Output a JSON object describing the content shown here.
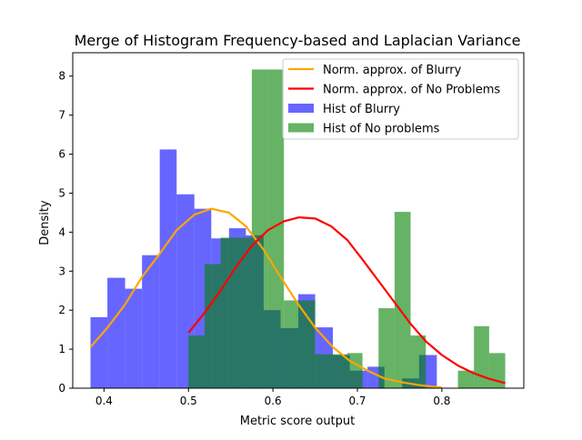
{
  "chart_data": {
    "type": "bar",
    "title": "Merge of Histogram Frequency-based and Laplacian Variance",
    "xlabel": "Metric score output",
    "ylabel": "Density",
    "xlim": [
      0.363,
      0.897
    ],
    "ylim": [
      0,
      8.6
    ],
    "xticks": [
      0.4,
      0.5,
      0.6,
      0.7,
      0.8
    ],
    "xtick_labels": [
      "0.4",
      "0.5",
      "0.6",
      "0.7",
      "0.8"
    ],
    "yticks": [
      0,
      1,
      2,
      3,
      4,
      5,
      6,
      7,
      8
    ],
    "ytick_labels": [
      "0",
      "1",
      "2",
      "3",
      "4",
      "5",
      "6",
      "7",
      "8"
    ],
    "legend_position": "top-right",
    "histograms": [
      {
        "name": "Hist of Blurry",
        "color": "#0000ff",
        "alpha": 0.6,
        "bin_edges": [
          0.384,
          0.404,
          0.425,
          0.445,
          0.466,
          0.486,
          0.507,
          0.527,
          0.548,
          0.568,
          0.589,
          0.609,
          0.63,
          0.65,
          0.671,
          0.691,
          0.712,
          0.732,
          0.753,
          0.773,
          0.794,
          0.814
        ],
        "values": [
          1.82,
          2.83,
          2.55,
          3.41,
          6.12,
          4.97,
          4.6,
          3.84,
          4.1,
          3.92,
          2.0,
          1.54,
          2.41,
          1.56,
          0.85,
          0.45,
          0.55,
          0.0,
          0.25,
          0.85,
          0.0
        ]
      },
      {
        "name": "Hist of No problems",
        "color": "#008000",
        "alpha": 0.6,
        "bin_edges": [
          0.5,
          0.519,
          0.538,
          0.556,
          0.575,
          0.594,
          0.613,
          0.631,
          0.65,
          0.669,
          0.688,
          0.706,
          0.725,
          0.744,
          0.763,
          0.781,
          0.8,
          0.819,
          0.838,
          0.856,
          0.875
        ],
        "values": [
          1.35,
          3.18,
          3.86,
          3.86,
          8.17,
          8.17,
          2.25,
          2.25,
          0.87,
          0.87,
          0.9,
          0.0,
          2.05,
          4.52,
          1.35,
          0.0,
          0.0,
          0.45,
          1.59,
          0.9
        ]
      }
    ],
    "series": [
      {
        "name": "Norm. approx. of Blurry",
        "color": "#ffa500",
        "x": [
          0.384,
          0.404,
          0.425,
          0.445,
          0.466,
          0.486,
          0.507,
          0.527,
          0.548,
          0.568,
          0.589,
          0.609,
          0.63,
          0.65,
          0.671,
          0.691,
          0.712,
          0.732,
          0.753,
          0.773,
          0.794,
          0.8
        ],
        "y": [
          1.05,
          1.55,
          2.15,
          2.85,
          3.45,
          4.05,
          4.45,
          4.6,
          4.5,
          4.15,
          3.55,
          2.85,
          2.15,
          1.55,
          1.05,
          0.7,
          0.45,
          0.25,
          0.15,
          0.08,
          0.03,
          0.02
        ]
      },
      {
        "name": "Norm. approx. of No Problems",
        "color": "#ff0000",
        "x": [
          0.5,
          0.519,
          0.538,
          0.556,
          0.575,
          0.594,
          0.613,
          0.631,
          0.65,
          0.669,
          0.688,
          0.706,
          0.725,
          0.744,
          0.763,
          0.781,
          0.8,
          0.819,
          0.838,
          0.856,
          0.875
        ],
        "y": [
          1.42,
          1.93,
          2.5,
          3.1,
          3.65,
          4.05,
          4.28,
          4.38,
          4.35,
          4.15,
          3.8,
          3.3,
          2.75,
          2.2,
          1.65,
          1.2,
          0.85,
          0.58,
          0.38,
          0.24,
          0.13
        ]
      }
    ],
    "legend": [
      {
        "label": "Norm. approx. of Blurry",
        "kind": "line",
        "color": "#ffa500"
      },
      {
        "label": "Norm. approx. of No Problems",
        "kind": "line",
        "color": "#ff0000"
      },
      {
        "label": "Hist of Blurry",
        "kind": "patch",
        "color": "#6666ff"
      },
      {
        "label": "Hist of No problems",
        "kind": "patch",
        "color": "#66b266"
      }
    ]
  }
}
